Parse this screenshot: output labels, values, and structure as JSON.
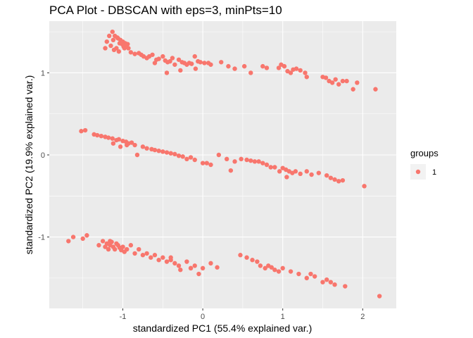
{
  "chart_data": {
    "type": "scatter",
    "title": "PCA Plot - DBSCAN with eps=3, minPts=10",
    "xlabel": "standardized PC1 (55.4% explained var.)",
    "ylabel": "standardized PC2 (19.9% explained var.)",
    "xlim": [
      -1.92,
      2.42
    ],
    "ylim": [
      -1.87,
      1.63
    ],
    "x_ticks": [
      -1,
      0,
      1,
      2
    ],
    "y_ticks": [
      -1,
      0,
      1
    ],
    "x_tick_labels": [
      "-1",
      "0",
      "1",
      "2"
    ],
    "y_tick_labels": [
      "-1",
      "0",
      "1"
    ],
    "grid": true,
    "legend": {
      "title": "groups",
      "placement": "right",
      "entries": [
        "1"
      ]
    },
    "colors": {
      "point": "#F8766D",
      "panel": "#EBEBEB",
      "grid": "#FFFFFF"
    },
    "series": [
      {
        "group": "1",
        "x": [
          -1.13,
          -1.1,
          -1.06,
          -1.03,
          -1.0,
          -0.97,
          -0.94,
          -1.2,
          -1.15,
          -1.08,
          -1.04,
          -0.99,
          -0.93,
          -1.17,
          -1.12,
          -1.07,
          -1.01,
          -0.96,
          -1.22,
          -1.11,
          -1.05,
          -0.98,
          -0.9,
          -0.85,
          -0.8,
          -0.77,
          -0.74,
          -0.7,
          -0.67,
          -0.63,
          -0.58,
          -0.55,
          -0.5,
          -0.47,
          -0.44,
          -0.41,
          -0.38,
          -0.35,
          -0.3,
          -0.26,
          -0.23,
          -0.2,
          -0.17,
          -0.14,
          -0.1,
          -0.06,
          -0.03,
          0.02,
          0.07,
          -0.6,
          -0.45,
          -0.28,
          -0.09,
          0.1,
          0.23,
          0.32,
          0.4,
          0.52,
          0.6,
          0.75,
          0.8,
          0.95,
          0.98,
          1.02,
          1.06,
          1.1,
          1.13,
          1.17,
          1.22,
          1.28,
          1.3,
          1.5,
          1.54,
          1.58,
          1.62,
          1.66,
          1.7,
          1.75,
          1.8,
          1.88,
          1.93,
          2.16,
          -1.52,
          -1.47,
          -1.36,
          -1.32,
          -1.27,
          -1.22,
          -1.18,
          -1.13,
          -1.08,
          -1.05,
          -1.0,
          -0.96,
          -0.93,
          -0.89,
          -0.85,
          -1.12,
          -1.03,
          -0.95,
          -0.75,
          -0.7,
          -0.64,
          -0.6,
          -0.55,
          -0.5,
          -0.45,
          -0.4,
          -0.35,
          -0.3,
          -0.25,
          -0.2,
          -0.15,
          -0.1,
          0.0,
          0.05,
          0.1,
          0.2,
          0.3,
          0.4,
          0.48,
          0.55,
          0.6,
          0.65,
          0.7,
          0.75,
          0.8,
          0.85,
          0.9,
          0.96,
          1.0,
          1.04,
          1.08,
          1.12,
          1.16,
          1.22,
          1.3,
          1.36,
          1.45,
          1.55,
          1.6,
          1.65,
          1.7,
          1.75,
          -0.82,
          0.35,
          1.05,
          2.02,
          -1.68,
          -1.62,
          -1.5,
          -1.45,
          -1.3,
          -1.25,
          -1.22,
          -1.2,
          -1.18,
          -1.16,
          -1.14,
          -1.12,
          -1.1,
          -1.08,
          -1.06,
          -1.04,
          -1.02,
          -1.0,
          -0.98,
          -0.95,
          -0.9,
          -0.85,
          -0.8,
          -0.75,
          -0.7,
          -0.65,
          -0.6,
          -0.55,
          -0.5,
          -0.45,
          -0.4,
          -0.35,
          -0.3,
          -0.2,
          -0.15,
          -0.1,
          -0.05,
          0.0,
          0.1,
          0.18,
          0.47,
          0.55,
          0.62,
          0.68,
          0.72,
          0.78,
          0.82,
          0.86,
          0.9,
          0.95,
          1.0,
          1.1,
          1.2,
          1.3,
          1.4,
          1.5,
          1.55,
          1.6,
          1.65,
          1.78,
          2.21,
          -0.15,
          -0.28,
          -0.4,
          1.35,
          -1.16
        ],
        "y": [
          1.5,
          1.45,
          1.42,
          1.4,
          1.38,
          1.36,
          1.35,
          1.38,
          1.33,
          1.3,
          1.36,
          1.32,
          1.3,
          1.45,
          1.4,
          1.43,
          1.35,
          1.34,
          1.3,
          1.28,
          1.26,
          1.3,
          1.25,
          1.23,
          1.24,
          1.22,
          1.2,
          1.18,
          1.2,
          1.22,
          1.16,
          1.17,
          1.2,
          1.15,
          1.13,
          1.14,
          1.18,
          1.1,
          1.16,
          1.13,
          1.12,
          1.1,
          1.12,
          1.11,
          1.2,
          1.14,
          1.13,
          1.12,
          1.12,
          1.12,
          1.0,
          1.03,
          1.05,
          1.1,
          1.13,
          1.08,
          1.05,
          1.08,
          1.0,
          1.08,
          1.06,
          1.06,
          1.1,
          1.08,
          1.02,
          1.0,
          1.04,
          1.05,
          1.03,
          1.0,
          0.95,
          0.95,
          0.94,
          0.9,
          0.88,
          0.92,
          0.86,
          0.9,
          0.9,
          0.8,
          0.88,
          0.8,
          0.29,
          0.3,
          0.25,
          0.24,
          0.23,
          0.22,
          0.21,
          0.2,
          0.18,
          0.19,
          0.17,
          0.16,
          0.14,
          0.15,
          0.12,
          0.14,
          0.1,
          0.12,
          0.1,
          0.08,
          0.07,
          0.06,
          0.05,
          0.04,
          0.03,
          0.02,
          0.01,
          -0.01,
          -0.02,
          -0.05,
          -0.03,
          -0.06,
          -0.1,
          -0.1,
          -0.12,
          0.0,
          -0.05,
          -0.08,
          -0.05,
          -0.06,
          -0.07,
          -0.08,
          -0.08,
          -0.1,
          -0.12,
          -0.15,
          -0.15,
          -0.2,
          -0.16,
          -0.18,
          -0.2,
          -0.22,
          -0.2,
          -0.23,
          -0.2,
          -0.24,
          -0.22,
          -0.25,
          -0.28,
          -0.3,
          -0.32,
          -0.31,
          0.0,
          -0.19,
          -0.27,
          -0.38,
          -1.05,
          -1.0,
          -1.02,
          -0.98,
          -1.1,
          -1.05,
          -1.12,
          -1.08,
          -1.15,
          -1.1,
          -1.06,
          -1.12,
          -1.15,
          -1.08,
          -1.1,
          -1.13,
          -1.16,
          -1.12,
          -1.18,
          -1.15,
          -1.1,
          -1.2,
          -1.15,
          -1.22,
          -1.2,
          -1.25,
          -1.22,
          -1.28,
          -1.25,
          -1.3,
          -1.28,
          -1.32,
          -1.35,
          -1.3,
          -1.38,
          -1.35,
          -1.45,
          -1.38,
          -1.32,
          -1.37,
          -1.22,
          -1.25,
          -1.28,
          -1.3,
          -1.35,
          -1.38,
          -1.35,
          -1.37,
          -1.4,
          -1.42,
          -1.38,
          -1.42,
          -1.45,
          -1.5,
          -1.48,
          -1.55,
          -1.52,
          -1.55,
          -1.58,
          -1.6,
          -1.72,
          -1.38,
          -1.4,
          -1.25,
          -1.45,
          -1.05
        ]
      }
    ]
  }
}
